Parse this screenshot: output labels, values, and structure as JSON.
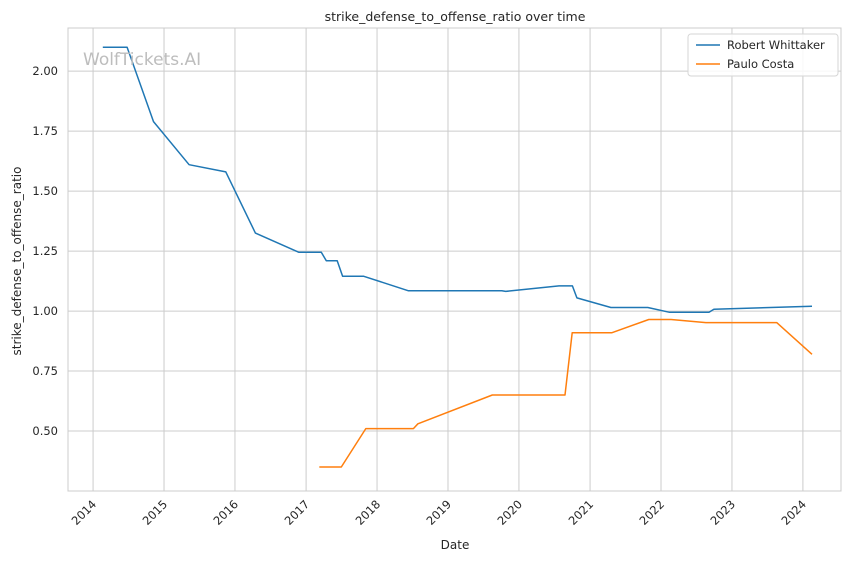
{
  "watermark": "WolfTickets.AI",
  "chart_data": {
    "type": "line",
    "title": "strike_defense_to_offense_ratio over time",
    "xlabel": "Date",
    "ylabel": "strike_defense_to_offense_ratio",
    "xlim": [
      "2013-08-25",
      "2024-07-15"
    ],
    "ylim": [
      0.25,
      2.18
    ],
    "x_ticks": [
      "2014",
      "2015",
      "2016",
      "2017",
      "2018",
      "2019",
      "2020",
      "2021",
      "2022",
      "2023",
      "2024"
    ],
    "y_ticks": [
      "0.50",
      "0.75",
      "1.00",
      "1.25",
      "1.50",
      "1.75",
      "2.00"
    ],
    "grid": true,
    "legend_position": "top-right",
    "series": [
      {
        "name": "Robert Whittaker",
        "color": "#1f77b4",
        "points": [
          [
            "2014-02-20",
            2.1
          ],
          [
            "2014-06-25",
            2.1
          ],
          [
            "2014-11-08",
            1.79
          ],
          [
            "2015-05-10",
            1.61
          ],
          [
            "2015-11-15",
            1.58
          ],
          [
            "2016-04-15",
            1.325
          ],
          [
            "2016-11-25",
            1.245
          ],
          [
            "2017-03-20",
            1.245
          ],
          [
            "2017-04-15",
            1.21
          ],
          [
            "2017-06-10",
            1.21
          ],
          [
            "2017-07-08",
            1.145
          ],
          [
            "2017-10-25",
            1.145
          ],
          [
            "2018-06-10",
            1.085
          ],
          [
            "2019-10-05",
            1.085
          ],
          [
            "2019-10-25",
            1.082
          ],
          [
            "2020-07-25",
            1.105
          ],
          [
            "2020-10-02",
            1.105
          ],
          [
            "2020-10-25",
            1.055
          ],
          [
            "2021-04-18",
            1.015
          ],
          [
            "2021-10-25",
            1.015
          ],
          [
            "2022-02-14",
            0.995
          ],
          [
            "2022-09-05",
            0.995
          ],
          [
            "2022-09-30",
            1.008
          ],
          [
            "2024-02-17",
            1.02
          ]
        ]
      },
      {
        "name": "Paulo Costa",
        "color": "#ff7f0e",
        "points": [
          [
            "2017-03-10",
            0.35
          ],
          [
            "2017-07-01",
            0.35
          ],
          [
            "2017-11-04",
            0.51
          ],
          [
            "2018-07-07",
            0.51
          ],
          [
            "2018-07-30",
            0.53
          ],
          [
            "2019-08-17",
            0.65
          ],
          [
            "2020-08-25",
            0.65
          ],
          [
            "2020-10-01",
            0.91
          ],
          [
            "2021-04-24",
            0.91
          ],
          [
            "2021-10-30",
            0.965
          ],
          [
            "2022-02-22",
            0.965
          ],
          [
            "2022-08-20",
            0.952
          ],
          [
            "2023-08-19",
            0.952
          ],
          [
            "2024-02-17",
            0.82
          ]
        ]
      }
    ]
  }
}
